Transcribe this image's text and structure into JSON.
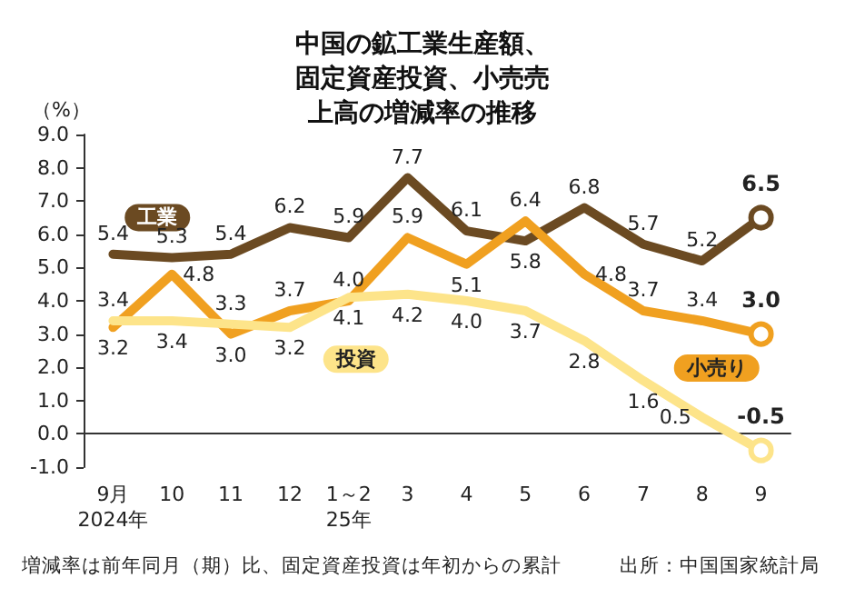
{
  "chart_data": {
    "type": "line",
    "title": "中国の鉱工業生産額、固定資産投資、小売売上高の増減率の推移",
    "ylabel": "（%）",
    "categories": [
      "9月\n2024年",
      "10",
      "11",
      "12",
      "1～2\n25年",
      "3",
      "4",
      "5",
      "6",
      "7",
      "8",
      "9"
    ],
    "series": [
      {
        "name": "工業",
        "color": "#6b4a22",
        "values": [
          5.4,
          5.3,
          5.4,
          6.2,
          5.9,
          7.7,
          6.1,
          5.8,
          6.8,
          5.7,
          5.2,
          6.5
        ],
        "value_labels": [
          "5.4",
          "5.3",
          "5.4",
          "6.2",
          "5.9",
          "7.7",
          "6.1",
          "5.8",
          "6.8",
          "5.7",
          "5.2",
          "6.5"
        ]
      },
      {
        "name": "小売り",
        "color": "#f0a020",
        "values": [
          3.2,
          4.8,
          3.0,
          3.7,
          4.0,
          5.9,
          5.1,
          6.4,
          4.8,
          3.7,
          3.4,
          3.0
        ],
        "value_labels": [
          "3.2",
          "4.8",
          "3.0",
          "3.7",
          "4.0",
          "5.9",
          "5.1",
          "6.4",
          "4.8",
          "3.7",
          "3.4",
          "3.0"
        ]
      },
      {
        "name": "投資",
        "color": "#fde48a",
        "values": [
          3.4,
          3.4,
          3.3,
          3.2,
          4.1,
          4.2,
          4.0,
          3.7,
          2.8,
          1.6,
          0.5,
          -0.5
        ],
        "value_labels": [
          "3.4",
          "3.4",
          "3.3",
          "3.2",
          "4.1",
          "4.2",
          "4.0",
          "3.7",
          "2.8",
          "1.6",
          "0.5",
          "-0.5"
        ]
      }
    ],
    "ylim": [
      -1,
      9
    ],
    "yticks": [
      {
        "value": -1,
        "label": "-1.0"
      },
      {
        "value": 0,
        "label": "0.0"
      },
      {
        "value": 1,
        "label": "1.0"
      },
      {
        "value": 2,
        "label": "2.0"
      },
      {
        "value": 3,
        "label": "3.0"
      },
      {
        "value": 4,
        "label": "4.0"
      },
      {
        "value": 5,
        "label": "5.0"
      },
      {
        "value": 6,
        "label": "6.0"
      },
      {
        "value": 7,
        "label": "7.0"
      },
      {
        "value": 8,
        "label": "8.0"
      },
      {
        "value": 9,
        "label": "9.0"
      }
    ],
    "grid": false,
    "legend": false,
    "annotations": [
      "増減率は前年同月（期）比、固定資産投資は年初からの累計",
      "出所：中国国家統計局"
    ]
  }
}
